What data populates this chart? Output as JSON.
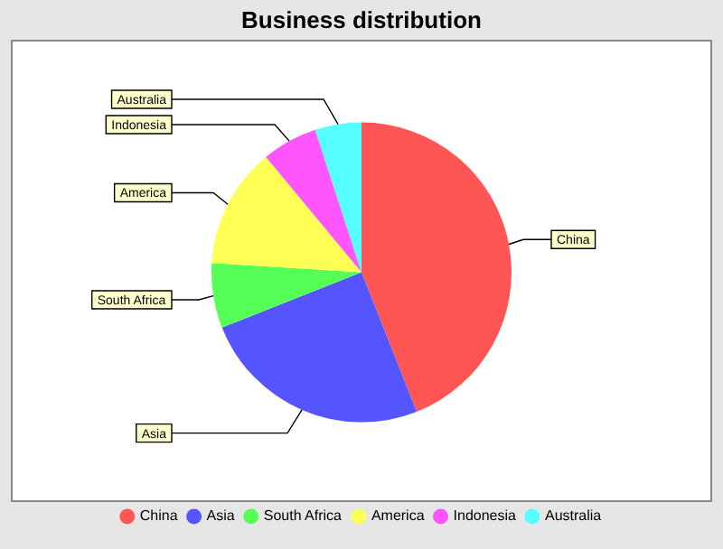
{
  "chart_data": {
    "type": "pie",
    "title": "Business distribution",
    "categories": [
      "China",
      "Asia",
      "South Africa",
      "America",
      "Indonesia",
      "Australia"
    ],
    "values": [
      44,
      25,
      7,
      13,
      6,
      5
    ],
    "colors": [
      "#ff5555",
      "#5555ff",
      "#55ff55",
      "#ffff55",
      "#ff55ff",
      "#55ffff"
    ],
    "legend": "bottom"
  }
}
